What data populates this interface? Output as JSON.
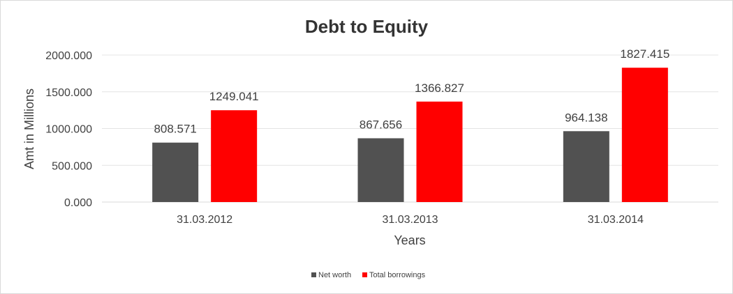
{
  "chart_data": {
    "type": "bar",
    "title": "Debt to Equity",
    "xlabel": "Years",
    "ylabel": "Amt in Millions",
    "categories": [
      "31.03.2012",
      "31.03.2013",
      "31.03.2014"
    ],
    "series": [
      {
        "name": "Net worth",
        "values": [
          808.571,
          867.656,
          964.138
        ],
        "labels": [
          "808.571",
          "867.656",
          "964.138"
        ],
        "color": "#515151"
      },
      {
        "name": "Total borrowings",
        "values": [
          1249.041,
          1366.827,
          1827.415
        ],
        "labels": [
          "1249.041",
          "1366.827",
          "1827.415"
        ],
        "color": "#ff0000"
      }
    ],
    "ylim": [
      0,
      2000
    ],
    "yticks": [
      "0.000",
      "500.000",
      "1000.000",
      "1500.000",
      "2000.000"
    ],
    "grid": true,
    "legend_position": "bottom"
  }
}
